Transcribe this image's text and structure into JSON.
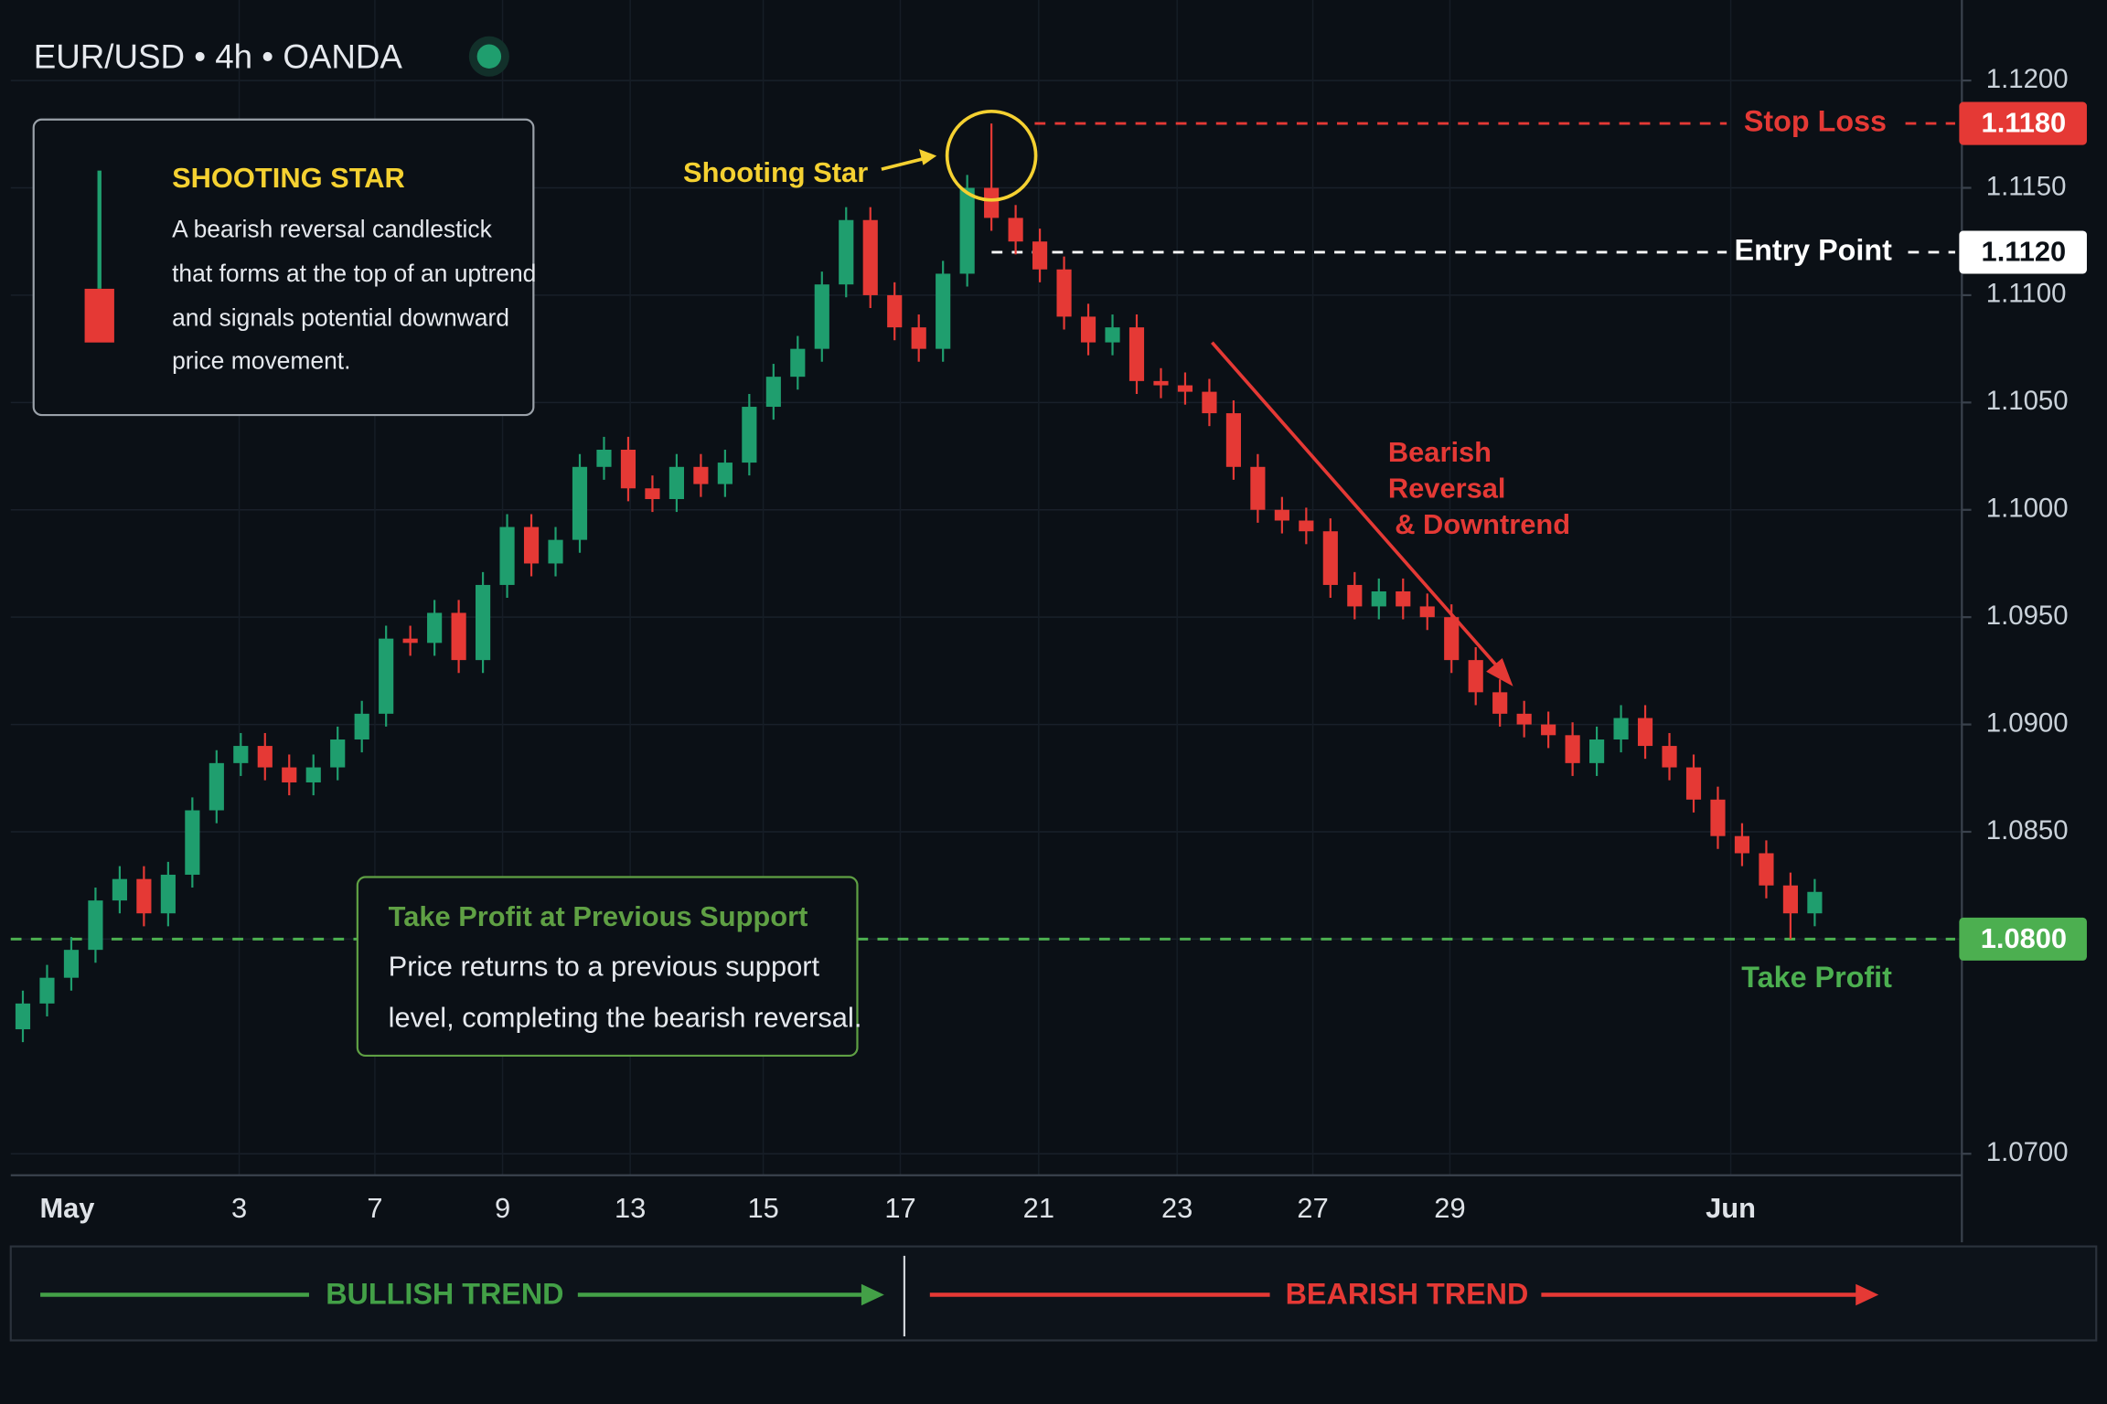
{
  "chart_data": {
    "type": "candlestick",
    "title": "EUR/USD • 4h • OANDA",
    "up_color": "#1f9e6e",
    "down_color": "#e53935",
    "ylim": [
      1.069,
      1.1225
    ],
    "yticks": [
      {
        "value": 1.12,
        "label": "1.1200"
      },
      {
        "value": 1.115,
        "label": "1.1150"
      },
      {
        "value": 1.11,
        "label": "1.1100"
      },
      {
        "value": 1.105,
        "label": "1.1050"
      },
      {
        "value": 1.1,
        "label": "1.1000"
      },
      {
        "value": 1.095,
        "label": "1.0950"
      },
      {
        "value": 1.09,
        "label": "1.0900"
      },
      {
        "value": 1.085,
        "label": "1.0850"
      },
      {
        "value": 1.08,
        "label": "1.0800"
      },
      {
        "value": 1.07,
        "label": "1.0700"
      }
    ],
    "grid": true,
    "x_labels": [
      "May",
      "3",
      "7",
      "9",
      "13",
      "15",
      "17",
      "21",
      "23",
      "27",
      "29",
      "Jun"
    ],
    "open": [
      1.0758,
      1.077,
      1.0782,
      1.0795,
      1.0818,
      1.0828,
      1.0812,
      1.083,
      1.086,
      1.0882,
      1.089,
      1.088,
      1.0873,
      1.088,
      1.0893,
      1.0905,
      1.094,
      1.0938,
      1.0952,
      1.093,
      1.0965,
      1.0992,
      1.0975,
      1.0986,
      1.102,
      1.1028,
      1.101,
      1.1005,
      1.102,
      1.1012,
      1.1022,
      1.1048,
      1.1062,
      1.1075,
      1.1105,
      1.1135,
      1.11,
      1.1085,
      1.1075,
      1.111,
      1.115,
      1.1136,
      1.1125,
      1.1112,
      1.109,
      1.1078,
      1.1085,
      1.106,
      1.1058,
      1.1055,
      1.1045,
      1.102,
      1.1,
      1.0995,
      1.099,
      1.0965,
      1.0955,
      1.0962,
      1.0955,
      1.095,
      1.093,
      1.0915,
      1.0905,
      1.09,
      1.0895,
      1.0882,
      1.0893,
      1.0903,
      1.089,
      1.088,
      1.0865,
      1.0848,
      1.084,
      1.0825,
      1.0812
    ],
    "high": [
      1.0776,
      1.0788,
      1.0801,
      1.0824,
      1.0834,
      1.0834,
      1.0836,
      1.0866,
      1.0888,
      1.0896,
      1.0896,
      1.0886,
      1.0886,
      1.0899,
      1.0911,
      1.0946,
      1.0946,
      1.0958,
      1.0958,
      1.0971,
      1.0998,
      1.0998,
      1.0992,
      1.1026,
      1.1034,
      1.1034,
      1.1016,
      1.1026,
      1.1026,
      1.1028,
      1.1054,
      1.1068,
      1.1081,
      1.1111,
      1.1141,
      1.1141,
      1.1106,
      1.1091,
      1.1116,
      1.1156,
      1.118,
      1.1142,
      1.1131,
      1.1118,
      1.1096,
      1.1091,
      1.1091,
      1.1066,
      1.1064,
      1.1061,
      1.1051,
      1.1026,
      1.1006,
      1.1001,
      1.0996,
      1.0971,
      1.0968,
      1.0968,
      1.0961,
      1.0956,
      1.0936,
      1.0921,
      1.0911,
      1.0906,
      1.0901,
      1.0899,
      1.0909,
      1.0909,
      1.0896,
      1.0886,
      1.0871,
      1.0854,
      1.0846,
      1.0831,
      1.0828
    ],
    "low": [
      1.0752,
      1.0764,
      1.0776,
      1.0789,
      1.0812,
      1.0806,
      1.0806,
      1.0824,
      1.0854,
      1.0876,
      1.0874,
      1.0867,
      1.0867,
      1.0874,
      1.0887,
      1.0899,
      1.0932,
      1.0932,
      1.0924,
      1.0924,
      1.0959,
      1.0969,
      1.0969,
      1.098,
      1.1014,
      1.1004,
      1.0999,
      1.0999,
      1.1006,
      1.1006,
      1.1016,
      1.1042,
      1.1056,
      1.1069,
      1.1099,
      1.1094,
      1.1079,
      1.1069,
      1.1069,
      1.1104,
      1.113,
      1.1119,
      1.1106,
      1.1084,
      1.1072,
      1.1072,
      1.1054,
      1.1052,
      1.1049,
      1.1039,
      1.1014,
      1.0994,
      1.0989,
      1.0984,
      1.0959,
      1.0949,
      1.0949,
      1.0949,
      1.0944,
      1.0924,
      1.0909,
      1.0899,
      1.0894,
      1.0889,
      1.0876,
      1.0876,
      1.0887,
      1.0884,
      1.0874,
      1.0859,
      1.0842,
      1.0834,
      1.0819,
      1.08,
      1.0806
    ],
    "close": [
      1.077,
      1.0782,
      1.0795,
      1.0818,
      1.0828,
      1.0812,
      1.083,
      1.086,
      1.0882,
      1.089,
      1.088,
      1.0873,
      1.088,
      1.0893,
      1.0905,
      1.094,
      1.0938,
      1.0952,
      1.093,
      1.0965,
      1.0992,
      1.0975,
      1.0986,
      1.102,
      1.1028,
      1.101,
      1.1005,
      1.102,
      1.1012,
      1.1022,
      1.1048,
      1.1062,
      1.1075,
      1.1105,
      1.1135,
      1.11,
      1.1085,
      1.1075,
      1.111,
      1.115,
      1.1136,
      1.1125,
      1.1112,
      1.109,
      1.1078,
      1.1085,
      1.106,
      1.1058,
      1.1055,
      1.1045,
      1.102,
      1.1,
      1.0995,
      1.099,
      1.0965,
      1.0955,
      1.0962,
      1.0955,
      1.095,
      1.093,
      1.0915,
      1.0905,
      1.09,
      1.0895,
      1.0882,
      1.0893,
      1.0903,
      1.089,
      1.088,
      1.0865,
      1.0848,
      1.084,
      1.0825,
      1.0812,
      1.0822
    ],
    "levels": [
      {
        "label": "Stop Loss",
        "value": 1.118,
        "value_label": "1.1180",
        "color": "#e53935"
      },
      {
        "label": "Entry Point",
        "value": 1.112,
        "value_label": "1.1120",
        "color": "#ffffff"
      },
      {
        "label": "Take Profit",
        "value": 1.08,
        "value_label": "1.0800",
        "color": "#4caf50"
      }
    ],
    "info_box": {
      "title": "SHOOTING STAR",
      "lines": [
        "A bearish reversal candlestick",
        "that forms at the top of an uptrend",
        "and signals potential downward",
        "price movement."
      ]
    },
    "star_annotation": "Shooting Star",
    "trend_annotation": [
      "Bearish",
      "Reversal",
      "& Downtrend"
    ],
    "tp_box": {
      "title": "Take Profit at Previous Support",
      "lines": [
        "Price returns to a previous support",
        "level, completing the bearish reversal."
      ]
    },
    "bullish_label": "BULLISH TREND",
    "bearish_label": "BEARISH TREND"
  }
}
